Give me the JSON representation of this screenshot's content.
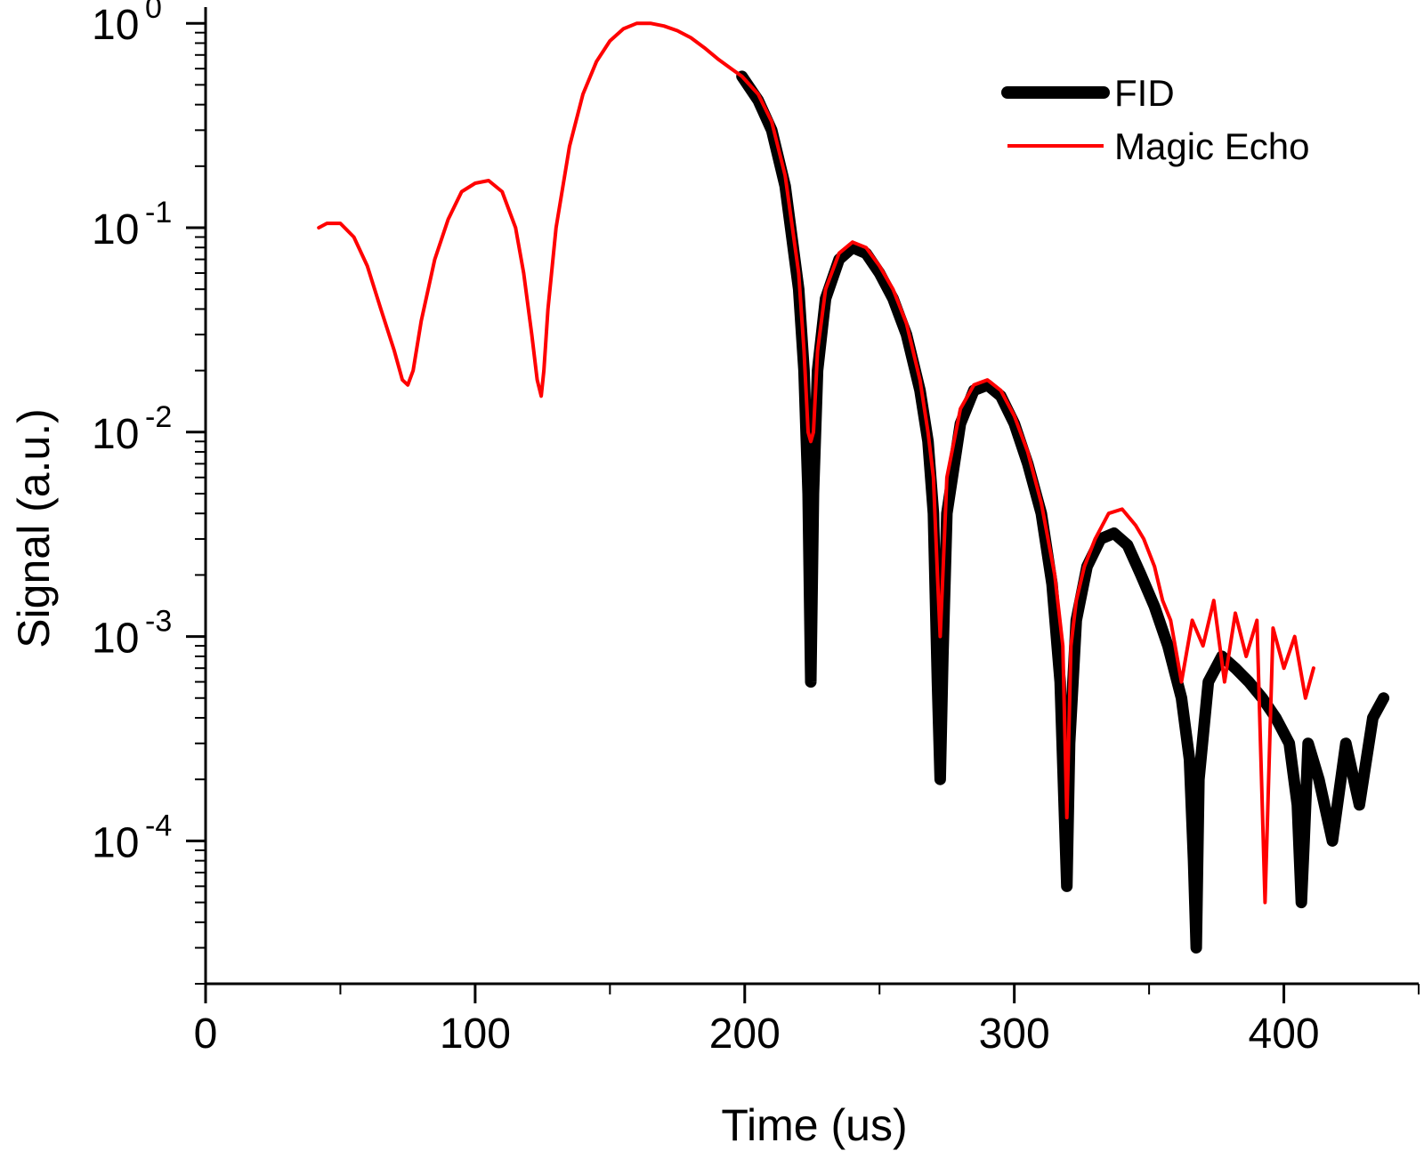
{
  "chart_data": {
    "type": "line",
    "title": "",
    "xlabel": "Time (us)",
    "ylabel": "Signal (a.u.)",
    "xlim": [
      0,
      450
    ],
    "ylim": [
      2e-05,
      1.2
    ],
    "yscale": "log",
    "grid": false,
    "legend_position": "top-right",
    "x_ticks": [
      {
        "value": 0,
        "label": "0"
      },
      {
        "value": 100,
        "label": "100"
      },
      {
        "value": 200,
        "label": "200"
      },
      {
        "value": 300,
        "label": "300"
      },
      {
        "value": 400,
        "label": "400"
      }
    ],
    "y_ticks": [
      {
        "value": 1,
        "base": "10",
        "exp": "0"
      },
      {
        "value": 0.1,
        "base": "10",
        "exp": "-1"
      },
      {
        "value": 0.01,
        "base": "10",
        "exp": "-2"
      },
      {
        "value": 0.001,
        "base": "10",
        "exp": "-3"
      },
      {
        "value": 0.0001,
        "base": "10",
        "exp": "-4"
      }
    ],
    "series": [
      {
        "name": "FID",
        "color": "#000000",
        "style": "thick",
        "x": [
          199,
          205,
          210,
          215,
          220,
          222,
          223.5,
          224.5,
          225.5,
          227,
          230,
          235,
          240,
          245,
          250,
          255,
          260,
          265,
          268,
          270,
          271.5,
          272.5,
          273.5,
          275,
          280,
          285,
          290,
          295,
          300,
          305,
          310,
          314,
          317,
          318.5,
          319.5,
          320.5,
          323,
          327,
          332,
          337,
          342,
          347,
          352,
          357,
          362,
          365,
          366.5,
          367.5,
          368.5,
          372,
          377,
          382,
          387,
          392,
          397,
          402,
          405,
          406.5,
          407.5,
          409,
          413,
          418,
          423,
          428,
          433,
          437
        ],
        "y": [
          0.55,
          0.42,
          0.3,
          0.16,
          0.05,
          0.02,
          0.005,
          0.0006,
          0.005,
          0.02,
          0.045,
          0.07,
          0.08,
          0.075,
          0.06,
          0.045,
          0.03,
          0.016,
          0.009,
          0.004,
          0.0006,
          0.0002,
          0.0008,
          0.004,
          0.011,
          0.016,
          0.017,
          0.015,
          0.011,
          0.007,
          0.004,
          0.0018,
          0.0006,
          0.00015,
          6e-05,
          0.0003,
          0.0012,
          0.0022,
          0.003,
          0.0032,
          0.0028,
          0.002,
          0.0014,
          0.0009,
          0.0005,
          0.00025,
          8e-05,
          3e-05,
          0.0002,
          0.0006,
          0.0008,
          0.0007,
          0.0006,
          0.0005,
          0.0004,
          0.0003,
          0.00015,
          5e-05,
          0.0001,
          0.0003,
          0.0002,
          0.0001,
          0.0003,
          0.00015,
          0.0004,
          0.0005
        ]
      },
      {
        "name": "Magic Echo",
        "color": "#ff0000",
        "style": "thin",
        "x": [
          42,
          45,
          50,
          55,
          60,
          65,
          70,
          73,
          75,
          77,
          80,
          85,
          90,
          95,
          100,
          105,
          110,
          115,
          118,
          121,
          123,
          124.5,
          125.5,
          127,
          130,
          135,
          140,
          145,
          150,
          155,
          160,
          165,
          170,
          175,
          180,
          185,
          190,
          195,
          199,
          205,
          210,
          215,
          220,
          222,
          223.5,
          224.5,
          225.5,
          227,
          230,
          235,
          240,
          245,
          250,
          255,
          260,
          265,
          268,
          270,
          271.5,
          272.5,
          273.5,
          275,
          280,
          285,
          290,
          295,
          300,
          305,
          310,
          315,
          318,
          319.5,
          321,
          323,
          326,
          330,
          335,
          340,
          345,
          348,
          352,
          355,
          358,
          362,
          366,
          370,
          374,
          378,
          382,
          386,
          390,
          393,
          396,
          400,
          404,
          408,
          411
        ],
        "y": [
          0.1,
          0.105,
          0.105,
          0.09,
          0.065,
          0.04,
          0.025,
          0.018,
          0.017,
          0.02,
          0.035,
          0.07,
          0.11,
          0.15,
          0.165,
          0.17,
          0.15,
          0.1,
          0.06,
          0.03,
          0.018,
          0.015,
          0.02,
          0.04,
          0.1,
          0.25,
          0.45,
          0.65,
          0.82,
          0.94,
          1.0,
          1.0,
          0.97,
          0.92,
          0.85,
          0.76,
          0.67,
          0.6,
          0.55,
          0.45,
          0.33,
          0.18,
          0.06,
          0.025,
          0.01,
          0.009,
          0.01,
          0.025,
          0.05,
          0.075,
          0.085,
          0.08,
          0.065,
          0.05,
          0.034,
          0.018,
          0.01,
          0.006,
          0.002,
          0.001,
          0.002,
          0.006,
          0.013,
          0.017,
          0.018,
          0.016,
          0.012,
          0.008,
          0.0045,
          0.002,
          0.0009,
          0.00013,
          0.0009,
          0.0015,
          0.0022,
          0.003,
          0.004,
          0.0042,
          0.0035,
          0.003,
          0.0022,
          0.0015,
          0.0012,
          0.0006,
          0.0012,
          0.0009,
          0.0015,
          0.0006,
          0.0013,
          0.0008,
          0.0012,
          5e-05,
          0.0011,
          0.0007,
          0.001,
          0.0005,
          0.0007
        ]
      }
    ]
  }
}
